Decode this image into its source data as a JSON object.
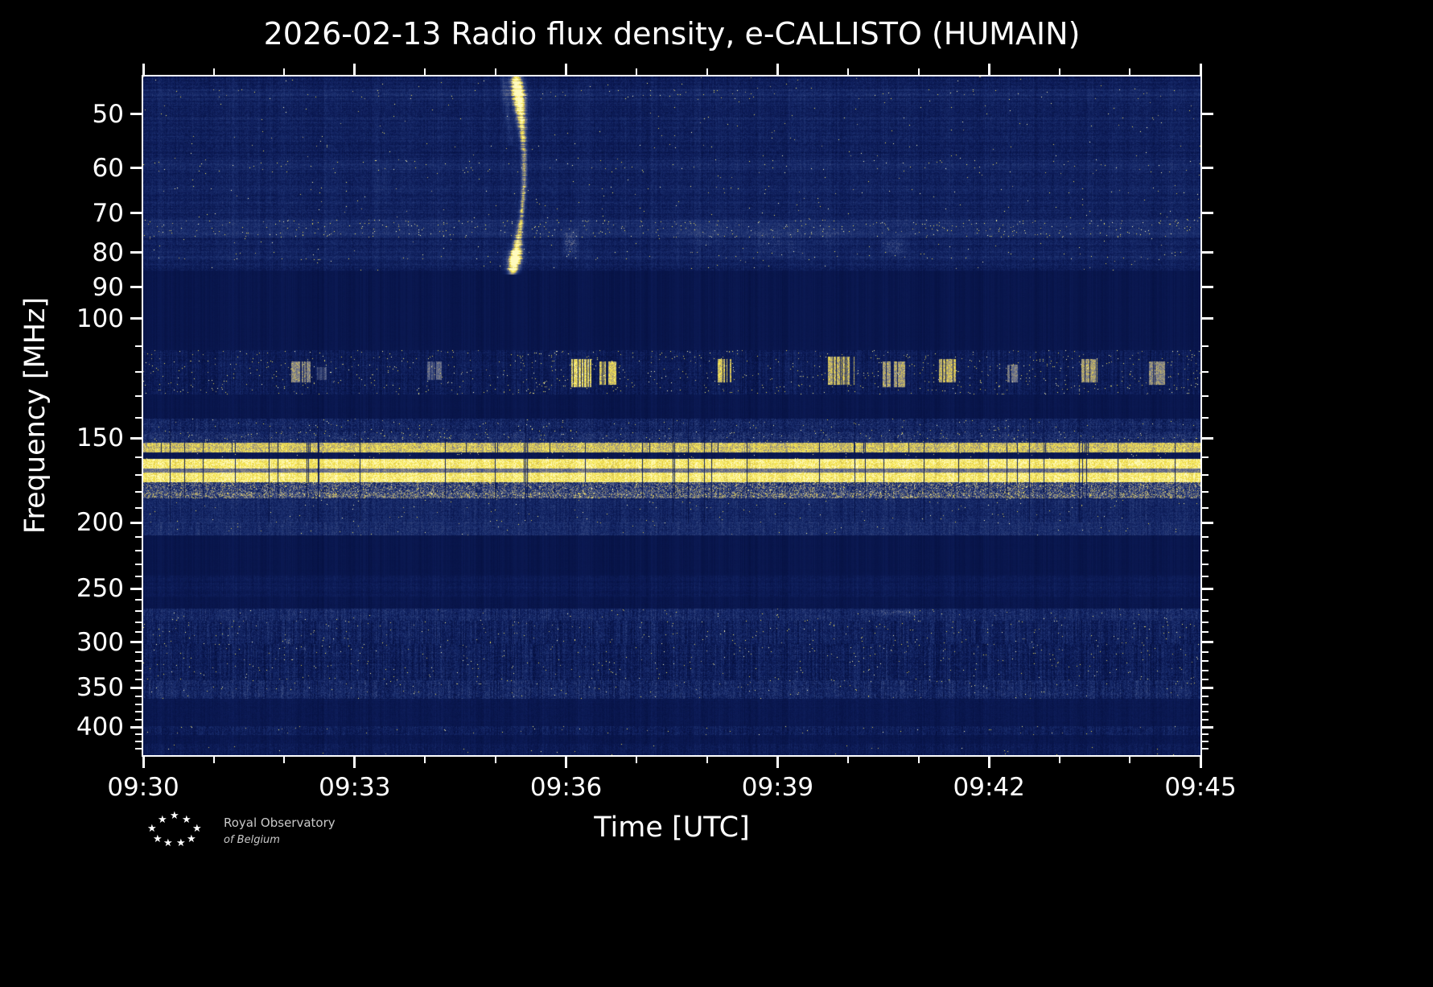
{
  "page": {
    "background": "#000000",
    "text_color": "#ffffff",
    "spine_color": "#ffffff"
  },
  "logo": {
    "line1": "Royal Observatory",
    "line2": "of Belgium"
  },
  "chart_data": {
    "type": "heatmap",
    "title": "2026-02-13 Radio flux density, e-CALLISTO (HUMAIN)",
    "xlabel": "Time [UTC]",
    "ylabel": "Frequency [MHz]",
    "x_ticks": [
      "09:30",
      "09:33",
      "09:36",
      "09:39",
      "09:42",
      "09:45"
    ],
    "x_minor_count": 15,
    "y_ticks": [
      50,
      60,
      70,
      80,
      90,
      100,
      150,
      200,
      250,
      300,
      350,
      400
    ],
    "y_minor_ticks": [
      110,
      120,
      130,
      140,
      160,
      170,
      180,
      190,
      210,
      220,
      230,
      240,
      260,
      270,
      280,
      290,
      310,
      320,
      330,
      340,
      360,
      370,
      380,
      390,
      410,
      420,
      430
    ],
    "f_range": [
      44,
      440
    ],
    "time_range": [
      "09:30",
      "09:45"
    ],
    "y_scale": "log",
    "y_inverted": true,
    "colormap": [
      [
        0.0,
        [
          5,
          16,
          64
        ]
      ],
      [
        0.18,
        [
          13,
          28,
          88
        ]
      ],
      [
        0.35,
        [
          28,
          48,
          112
        ]
      ],
      [
        0.52,
        [
          64,
          80,
          130
        ]
      ],
      [
        0.65,
        [
          115,
          118,
          138
        ]
      ],
      [
        0.76,
        [
          180,
          168,
          115
        ]
      ],
      [
        0.86,
        [
          236,
          214,
          70
        ]
      ],
      [
        0.94,
        [
          250,
          238,
          100
        ]
      ],
      [
        1.0,
        [
          255,
          250,
          190
        ]
      ]
    ],
    "bands": [
      {
        "f": [
          44,
          85
        ],
        "base": 0.21,
        "noise": 0.09,
        "stripe": 0.05,
        "speckle": 0.0015,
        "cnoise": 0.03,
        "rows": [
          {
            "f": [
              46,
              47.5
            ],
            "boost": 0.05,
            "speckle": 0.003
          },
          {
            "f": [
              58.5,
              61
            ],
            "boost": 0.05,
            "speckle": 0.004
          },
          {
            "f": [
              64,
              65.5
            ],
            "boost": 0.03,
            "speckle": 0.002
          },
          {
            "f": [
              71.5,
              76
            ],
            "boost": 0.1,
            "speckle": 0.012
          },
          {
            "f": [
              79.5,
              82
            ],
            "boost": 0.05,
            "speckle": 0.004
          }
        ]
      },
      {
        "f": [
          85,
          111.5
        ],
        "base": 0.095,
        "noise": 0.012,
        "stripe": 0.004
      },
      {
        "f": [
          111.5,
          129.5
        ],
        "base": 0.16,
        "noise": 0.1,
        "stripe": 0.03,
        "speckle": 0.012,
        "cnoise": 0.08
      },
      {
        "f": [
          129.5,
          140.5
        ],
        "base": 0.095,
        "noise": 0.015,
        "stripe": 0.006
      },
      {
        "f": [
          140.5,
          147
        ],
        "base": 0.24,
        "noise": 0.15,
        "stripe": 0.03,
        "speckle": 0.006,
        "gap": 0.015,
        "gapkey": 150,
        "cnoise": 0.06
      },
      {
        "f": [
          147,
          152.5
        ],
        "base": 0.3,
        "noise": 0.17,
        "stripe": 0.03,
        "speckle": 0.012,
        "gap": 0.015,
        "gapkey": 150,
        "cnoise": 0.06
      },
      {
        "f": [
          152.5,
          157.5
        ],
        "base": 0.82,
        "noise": 0.13,
        "stripe": 0.02,
        "gap": 0.05,
        "gapkey": 150
      },
      {
        "f": [
          157.5,
          161
        ],
        "base": 0.13,
        "noise": 0.05,
        "speckle": 0.006,
        "gap": 0.02,
        "gapkey": 150
      },
      {
        "f": [
          161,
          174.5
        ],
        "base": 0.93,
        "noise": 0.1,
        "stripe": 0.015,
        "gap": 0.035,
        "gapkey": 150,
        "rows": [
          {
            "f": [
              166.5,
              168.5
            ],
            "boost": -0.3,
            "speckle": 0
          }
        ]
      },
      {
        "f": [
          174.5,
          180.5
        ],
        "base": 0.45,
        "noise": 0.3,
        "speckle": 0.03,
        "gap": 0.03,
        "gapkey": 150,
        "cnoise": 0.08
      },
      {
        "f": [
          180.5,
          184
        ],
        "base": 0.52,
        "noise": 0.3,
        "speckle": 0.05,
        "gap": 0.03,
        "gapkey": 150,
        "cnoise": 0.06
      },
      {
        "f": [
          184,
          200
        ],
        "base": 0.27,
        "noise": 0.11,
        "stripe": 0.03,
        "speckle": 0.003,
        "gap": 0.015,
        "gapkey": 150,
        "cnoise": 0.05
      },
      {
        "f": [
          200,
          209
        ],
        "base": 0.3,
        "noise": 0.11,
        "stripe": 0.025,
        "speckle": 0.002,
        "cnoise": 0.05
      },
      {
        "f": [
          209,
          239
        ],
        "base": 0.095,
        "noise": 0.012,
        "stripe": 0.005
      },
      {
        "f": [
          239,
          257
        ],
        "base": 0.15,
        "noise": 0.05,
        "stripe": 0.02,
        "cnoise": 0.03
      },
      {
        "f": [
          257,
          268
        ],
        "base": 0.1,
        "noise": 0.02,
        "stripe": 0.008
      },
      {
        "f": [
          268,
          279
        ],
        "base": 0.27,
        "noise": 0.13,
        "stripe": 0.025,
        "speckle": 0.003,
        "cnoise": 0.08
      },
      {
        "f": [
          279,
          302
        ],
        "base": 0.21,
        "noise": 0.13,
        "stripe": 0.03,
        "speckle": 0.006,
        "cnoise": 0.1
      },
      {
        "f": [
          302,
          341
        ],
        "base": 0.19,
        "noise": 0.13,
        "stripe": 0.03,
        "speckle": 0.005,
        "cnoise": 0.1
      },
      {
        "f": [
          341,
          363
        ],
        "base": 0.26,
        "noise": 0.15,
        "stripe": 0.03,
        "speckle": 0.004,
        "cnoise": 0.1
      },
      {
        "f": [
          363,
          392
        ],
        "base": 0.12,
        "noise": 0.04,
        "stripe": 0.012
      },
      {
        "f": [
          392,
          399
        ],
        "base": 0.11,
        "noise": 0.03,
        "stripe": 0.008
      },
      {
        "f": [
          399,
          411
        ],
        "base": 0.19,
        "noise": 0.11,
        "stripe": 0.02,
        "speckle": 0.003,
        "cnoise": 0.07
      },
      {
        "f": [
          411,
          424
        ],
        "base": 0.11,
        "noise": 0.04,
        "stripe": 0.008
      },
      {
        "f": [
          424,
          440
        ],
        "base": 0.15,
        "noise": 0.08,
        "stripe": 0.015,
        "speckle": 0.002,
        "cnoise": 0.04
      }
    ],
    "features": {
      "burst": {
        "t": 0.352,
        "f_end": 86,
        "wiggle": 13,
        "description": "bright drifting radio burst near 09:35 spanning 45-86 MHz"
      },
      "patches": [
        {
          "t": [
            0.395,
            0.412
          ],
          "f": [
            73,
            82
          ],
          "s": 0.45
        },
        {
          "t": [
            0.5,
            0.56
          ],
          "f": [
            71,
            80
          ],
          "s": 0.16
        },
        {
          "t": [
            0.56,
            0.63
          ],
          "f": [
            72,
            82
          ],
          "s": 0.2
        },
        {
          "t": [
            0.63,
            0.67
          ],
          "f": [
            72,
            79
          ],
          "s": 0.14
        },
        {
          "t": [
            0.695,
            0.725
          ],
          "f": [
            75,
            81
          ],
          "s": 0.3
        },
        {
          "t": [
            0.215,
            0.235
          ],
          "f": [
            58,
            68
          ],
          "s": 0.1
        },
        {
          "t": [
            0.675,
            0.75
          ],
          "f": [
            268,
            274
          ],
          "s": 0.28
        },
        {
          "t": [
            0.133,
            0.141
          ],
          "f": [
            296,
            302
          ],
          "s": 0.45
        },
        {
          "t": [
            0.148,
            0.155
          ],
          "f": [
            303,
            309
          ],
          "s": 0.35
        },
        {
          "t": [
            0.836,
            0.843
          ],
          "f": [
            300,
            306
          ],
          "s": 0.4
        }
      ],
      "blobs": [
        {
          "t": [
            0.14,
            0.158
          ],
          "f": [
            116,
            124
          ],
          "s": 0.75
        },
        {
          "t": [
            0.165,
            0.175
          ],
          "f": [
            118,
            123
          ],
          "s": 0.6
        },
        {
          "t": [
            0.268,
            0.282
          ],
          "f": [
            116,
            123
          ],
          "s": 0.65
        },
        {
          "t": [
            0.405,
            0.425
          ],
          "f": [
            115,
            126
          ],
          "s": 0.95
        },
        {
          "t": [
            0.432,
            0.447
          ],
          "f": [
            116,
            125
          ],
          "s": 0.9
        },
        {
          "t": [
            0.542,
            0.556
          ],
          "f": [
            115,
            124
          ],
          "s": 0.9
        },
        {
          "t": [
            0.648,
            0.672
          ],
          "f": [
            114,
            125
          ],
          "s": 0.85
        },
        {
          "t": [
            0.7,
            0.722
          ],
          "f": [
            116,
            126
          ],
          "s": 0.8
        },
        {
          "t": [
            0.752,
            0.768
          ],
          "f": [
            115,
            124
          ],
          "s": 0.85
        },
        {
          "t": [
            0.818,
            0.828
          ],
          "f": [
            117,
            124
          ],
          "s": 0.7
        },
        {
          "t": [
            0.888,
            0.902
          ],
          "f": [
            115,
            124
          ],
          "s": 0.8
        },
        {
          "t": [
            0.952,
            0.966
          ],
          "f": [
            116,
            125
          ],
          "s": 0.75
        }
      ]
    }
  }
}
